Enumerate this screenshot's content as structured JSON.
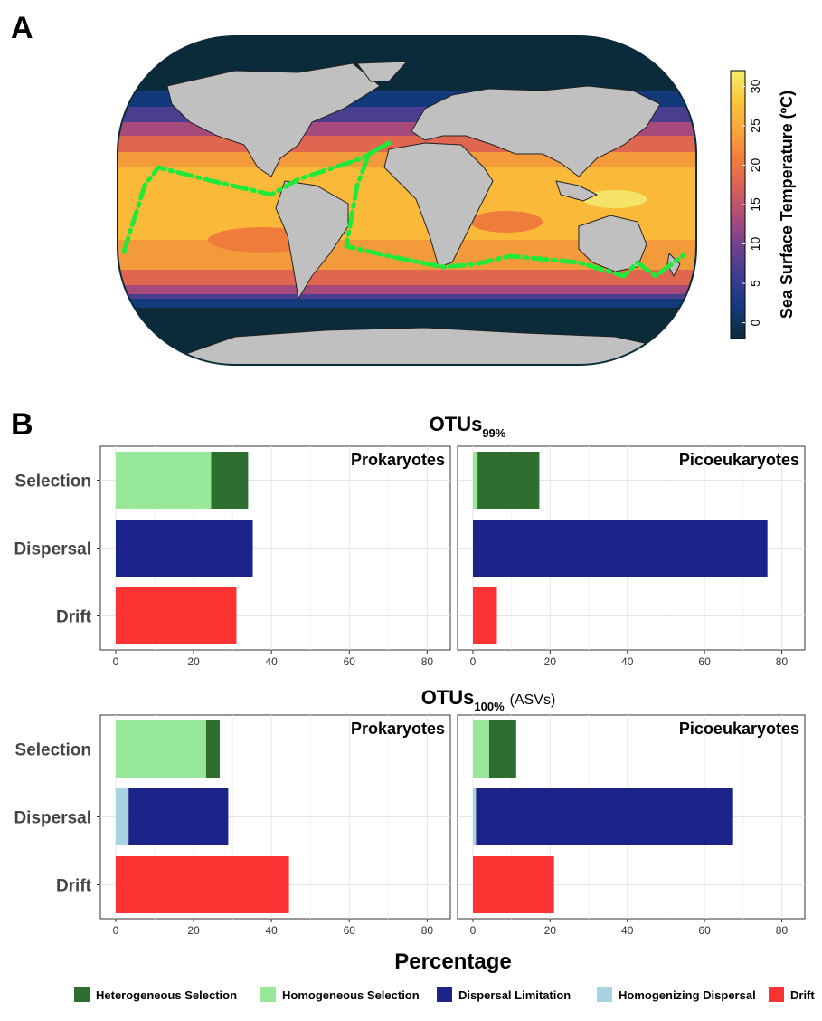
{
  "panel_a": {
    "letter": "A",
    "colorbar": {
      "title": "Sea Surface Temperature (ºC)",
      "ticks": [
        "0",
        "5",
        "10",
        "15",
        "20",
        "25",
        "30"
      ],
      "min": -2,
      "max": 32,
      "stops": [
        "#0b2b3a",
        "#123a7a",
        "#3a3d8f",
        "#6b3f8f",
        "#a64a7c",
        "#d65f5c",
        "#f07c3c",
        "#f9a63a",
        "#fbc63c",
        "#f5f06a"
      ]
    },
    "colors": {
      "route": "#22e83a",
      "land": "#c0c0c0",
      "frame": "#0b2b3a"
    }
  },
  "panel_b": {
    "letter": "B",
    "x_axis_title": "Percentage",
    "y_categories": [
      "Selection",
      "Dispersal",
      "Drift"
    ],
    "x_ticks": [
      "0",
      "20",
      "40",
      "60",
      "80"
    ],
    "legend": [
      {
        "name": "Heterogeneous Selection",
        "color": "#2e6e2e"
      },
      {
        "name": "Homogeneous Selection",
        "color": "#98e89a"
      },
      {
        "name": "Dispersal Limitation",
        "color": "#1c2388"
      },
      {
        "name": "Homogenizing Dispersal",
        "color": "#a9d3e0"
      },
      {
        "name": "Drift",
        "color": "#fb3333"
      }
    ],
    "rows": [
      {
        "title_main": "OTUs",
        "title_sub": "99%",
        "title_note": ""
      },
      {
        "title_main": "OTUs",
        "title_sub": "100%",
        "title_note": "(ASVs)"
      }
    ]
  },
  "chart_data": {
    "type": "bar",
    "orientation": "horizontal-stacked",
    "xlabel": "Percentage",
    "xlim": [
      0,
      82
    ],
    "categories": [
      "Selection",
      "Dispersal",
      "Drift"
    ],
    "panels": [
      {
        "row": "OTUs 99%",
        "facet": "Prokaryotes",
        "bars": [
          {
            "category": "Selection",
            "segments": [
              {
                "name": "Homogeneous Selection",
                "value": 24.5
              },
              {
                "name": "Heterogeneous Selection",
                "value": 9.5
              }
            ]
          },
          {
            "category": "Dispersal",
            "segments": [
              {
                "name": "Dispersal Limitation",
                "value": 35.2
              }
            ]
          },
          {
            "category": "Drift",
            "segments": [
              {
                "name": "Drift",
                "value": 31.0
              }
            ]
          }
        ]
      },
      {
        "row": "OTUs 99%",
        "facet": "Picoeukaryotes",
        "bars": [
          {
            "category": "Selection",
            "segments": [
              {
                "name": "Homogeneous Selection",
                "value": 1.2
              },
              {
                "name": "Heterogeneous Selection",
                "value": 16.0
              }
            ]
          },
          {
            "category": "Dispersal",
            "segments": [
              {
                "name": "Dispersal Limitation",
                "value": 76.3
              }
            ]
          },
          {
            "category": "Drift",
            "segments": [
              {
                "name": "Drift",
                "value": 6.2
              }
            ]
          }
        ]
      },
      {
        "row": "OTUs 100% (ASVs)",
        "facet": "Prokaryotes",
        "bars": [
          {
            "category": "Selection",
            "segments": [
              {
                "name": "Homogeneous Selection",
                "value": 23.2
              },
              {
                "name": "Heterogeneous Selection",
                "value": 3.5
              }
            ]
          },
          {
            "category": "Dispersal",
            "segments": [
              {
                "name": "Homogenizing Dispersal",
                "value": 3.3
              },
              {
                "name": "Dispersal Limitation",
                "value": 25.6
              }
            ]
          },
          {
            "category": "Drift",
            "segments": [
              {
                "name": "Drift",
                "value": 44.5
              }
            ]
          }
        ]
      },
      {
        "row": "OTUs 100% (ASVs)",
        "facet": "Picoeukaryotes",
        "bars": [
          {
            "category": "Selection",
            "segments": [
              {
                "name": "Homogeneous Selection",
                "value": 4.2
              },
              {
                "name": "Heterogeneous Selection",
                "value": 7.0
              }
            ]
          },
          {
            "category": "Dispersal",
            "segments": [
              {
                "name": "Homogenizing Dispersal",
                "value": 0.8
              },
              {
                "name": "Dispersal Limitation",
                "value": 66.6
              }
            ]
          },
          {
            "category": "Drift",
            "segments": [
              {
                "name": "Drift",
                "value": 21.0
              }
            ]
          }
        ]
      }
    ]
  }
}
